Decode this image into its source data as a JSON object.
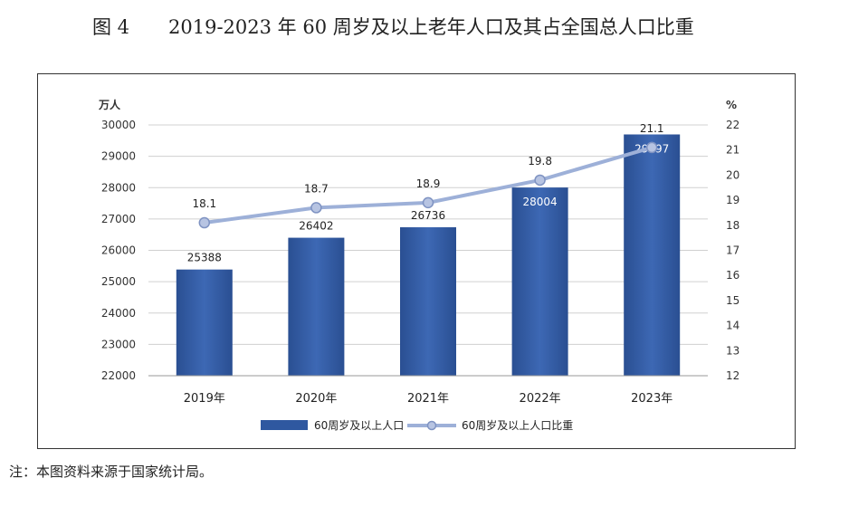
{
  "figure": {
    "number": "图 4",
    "title": "2019-2023 年 60 周岁及以上老年人口及其占全国总人口比重",
    "note": "注：本图资料来源于国家统计局。"
  },
  "colors": {
    "bar": "#2f58a0",
    "bar_light": "#4a78c4",
    "line": "#9db0d8",
    "marker": "#b7c4e2",
    "grid": "#d0d0d0"
  },
  "chart_data": {
    "type": "bar+line",
    "categories": [
      "2019年",
      "2020年",
      "2021年",
      "2022年",
      "2023年"
    ],
    "series": [
      {
        "name": "60周岁及以上人口",
        "type": "bar",
        "axis": "left",
        "values": [
          25388,
          26402,
          26736,
          28004,
          29697
        ]
      },
      {
        "name": "60周岁及以上人口比重",
        "type": "line",
        "axis": "right",
        "values": [
          18.1,
          18.7,
          18.9,
          19.8,
          21.1
        ]
      }
    ],
    "y_left": {
      "label": "万人",
      "min": 22000,
      "max": 30000,
      "step": 1000
    },
    "y_right": {
      "label": "%",
      "min": 12,
      "max": 22,
      "step": 1
    },
    "grid": true,
    "legend_position": "bottom"
  }
}
